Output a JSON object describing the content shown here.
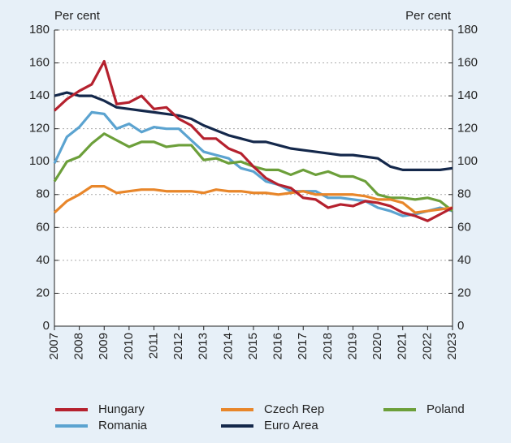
{
  "chart_data": {
    "type": "line",
    "ylabel": "Per cent",
    "y2label": "Per cent",
    "x": [
      2007,
      2007.5,
      2008,
      2008.5,
      2009,
      2009.5,
      2010,
      2010.5,
      2011,
      2011.5,
      2012,
      2012.5,
      2013,
      2013.5,
      2014,
      2014.5,
      2015,
      2015.5,
      2016,
      2016.5,
      2017,
      2017.5,
      2018,
      2018.5,
      2019,
      2019.5,
      2020,
      2020.5,
      2021,
      2021.5,
      2022,
      2022.5,
      2023
    ],
    "xlim": [
      2007,
      2023
    ],
    "xticks": [
      2007,
      2008,
      2009,
      2010,
      2011,
      2012,
      2013,
      2014,
      2015,
      2016,
      2017,
      2018,
      2019,
      2020,
      2021,
      2022,
      2023
    ],
    "ylim": [
      0,
      180
    ],
    "yticks": [
      0,
      20,
      40,
      60,
      80,
      100,
      120,
      140,
      160,
      180
    ],
    "y2lim": [
      0,
      180
    ],
    "y2ticks": [
      0,
      20,
      40,
      60,
      80,
      100,
      120,
      140,
      160,
      180
    ],
    "grid": true,
    "series": [
      {
        "name": "Hungary",
        "color": "#b5212e",
        "values": [
          131,
          138,
          143,
          147,
          161,
          135,
          136,
          140,
          132,
          133,
          126,
          122,
          114,
          114,
          108,
          105,
          97,
          90,
          86,
          84,
          78,
          77,
          72,
          74,
          73,
          76,
          75,
          73,
          69,
          67,
          64,
          68,
          72
        ]
      },
      {
        "name": "Czech Rep",
        "color": "#e8862a",
        "values": [
          69,
          76,
          80,
          85,
          85,
          81,
          82,
          83,
          83,
          82,
          82,
          82,
          81,
          83,
          82,
          82,
          81,
          81,
          80,
          81,
          82,
          80,
          80,
          80,
          80,
          79,
          77,
          77,
          75,
          69,
          70,
          71,
          72
        ]
      },
      {
        "name": "Poland",
        "color": "#6c9f3a",
        "values": [
          88,
          100,
          103,
          111,
          117,
          113,
          109,
          112,
          112,
          109,
          110,
          110,
          101,
          102,
          99,
          100,
          97,
          95,
          95,
          92,
          95,
          92,
          94,
          91,
          91,
          88,
          80,
          78,
          78,
          77,
          78,
          76,
          70
        ]
      },
      {
        "name": "Romania",
        "color": "#5ba3d0",
        "values": [
          99,
          115,
          121,
          130,
          129,
          120,
          123,
          118,
          121,
          120,
          120,
          113,
          106,
          104,
          102,
          96,
          94,
          88,
          86,
          82,
          82,
          82,
          78,
          78,
          77,
          76,
          72,
          70,
          67,
          68,
          70,
          72,
          70
        ]
      },
      {
        "name": "Euro Area",
        "color": "#14284b",
        "values": [
          140,
          142,
          140,
          140,
          137,
          133,
          132,
          131,
          130,
          129,
          128,
          126,
          122,
          119,
          116,
          114,
          112,
          112,
          110,
          108,
          107,
          106,
          105,
          104,
          104,
          103,
          102,
          97,
          95,
          95,
          95,
          95,
          96
        ]
      }
    ]
  }
}
